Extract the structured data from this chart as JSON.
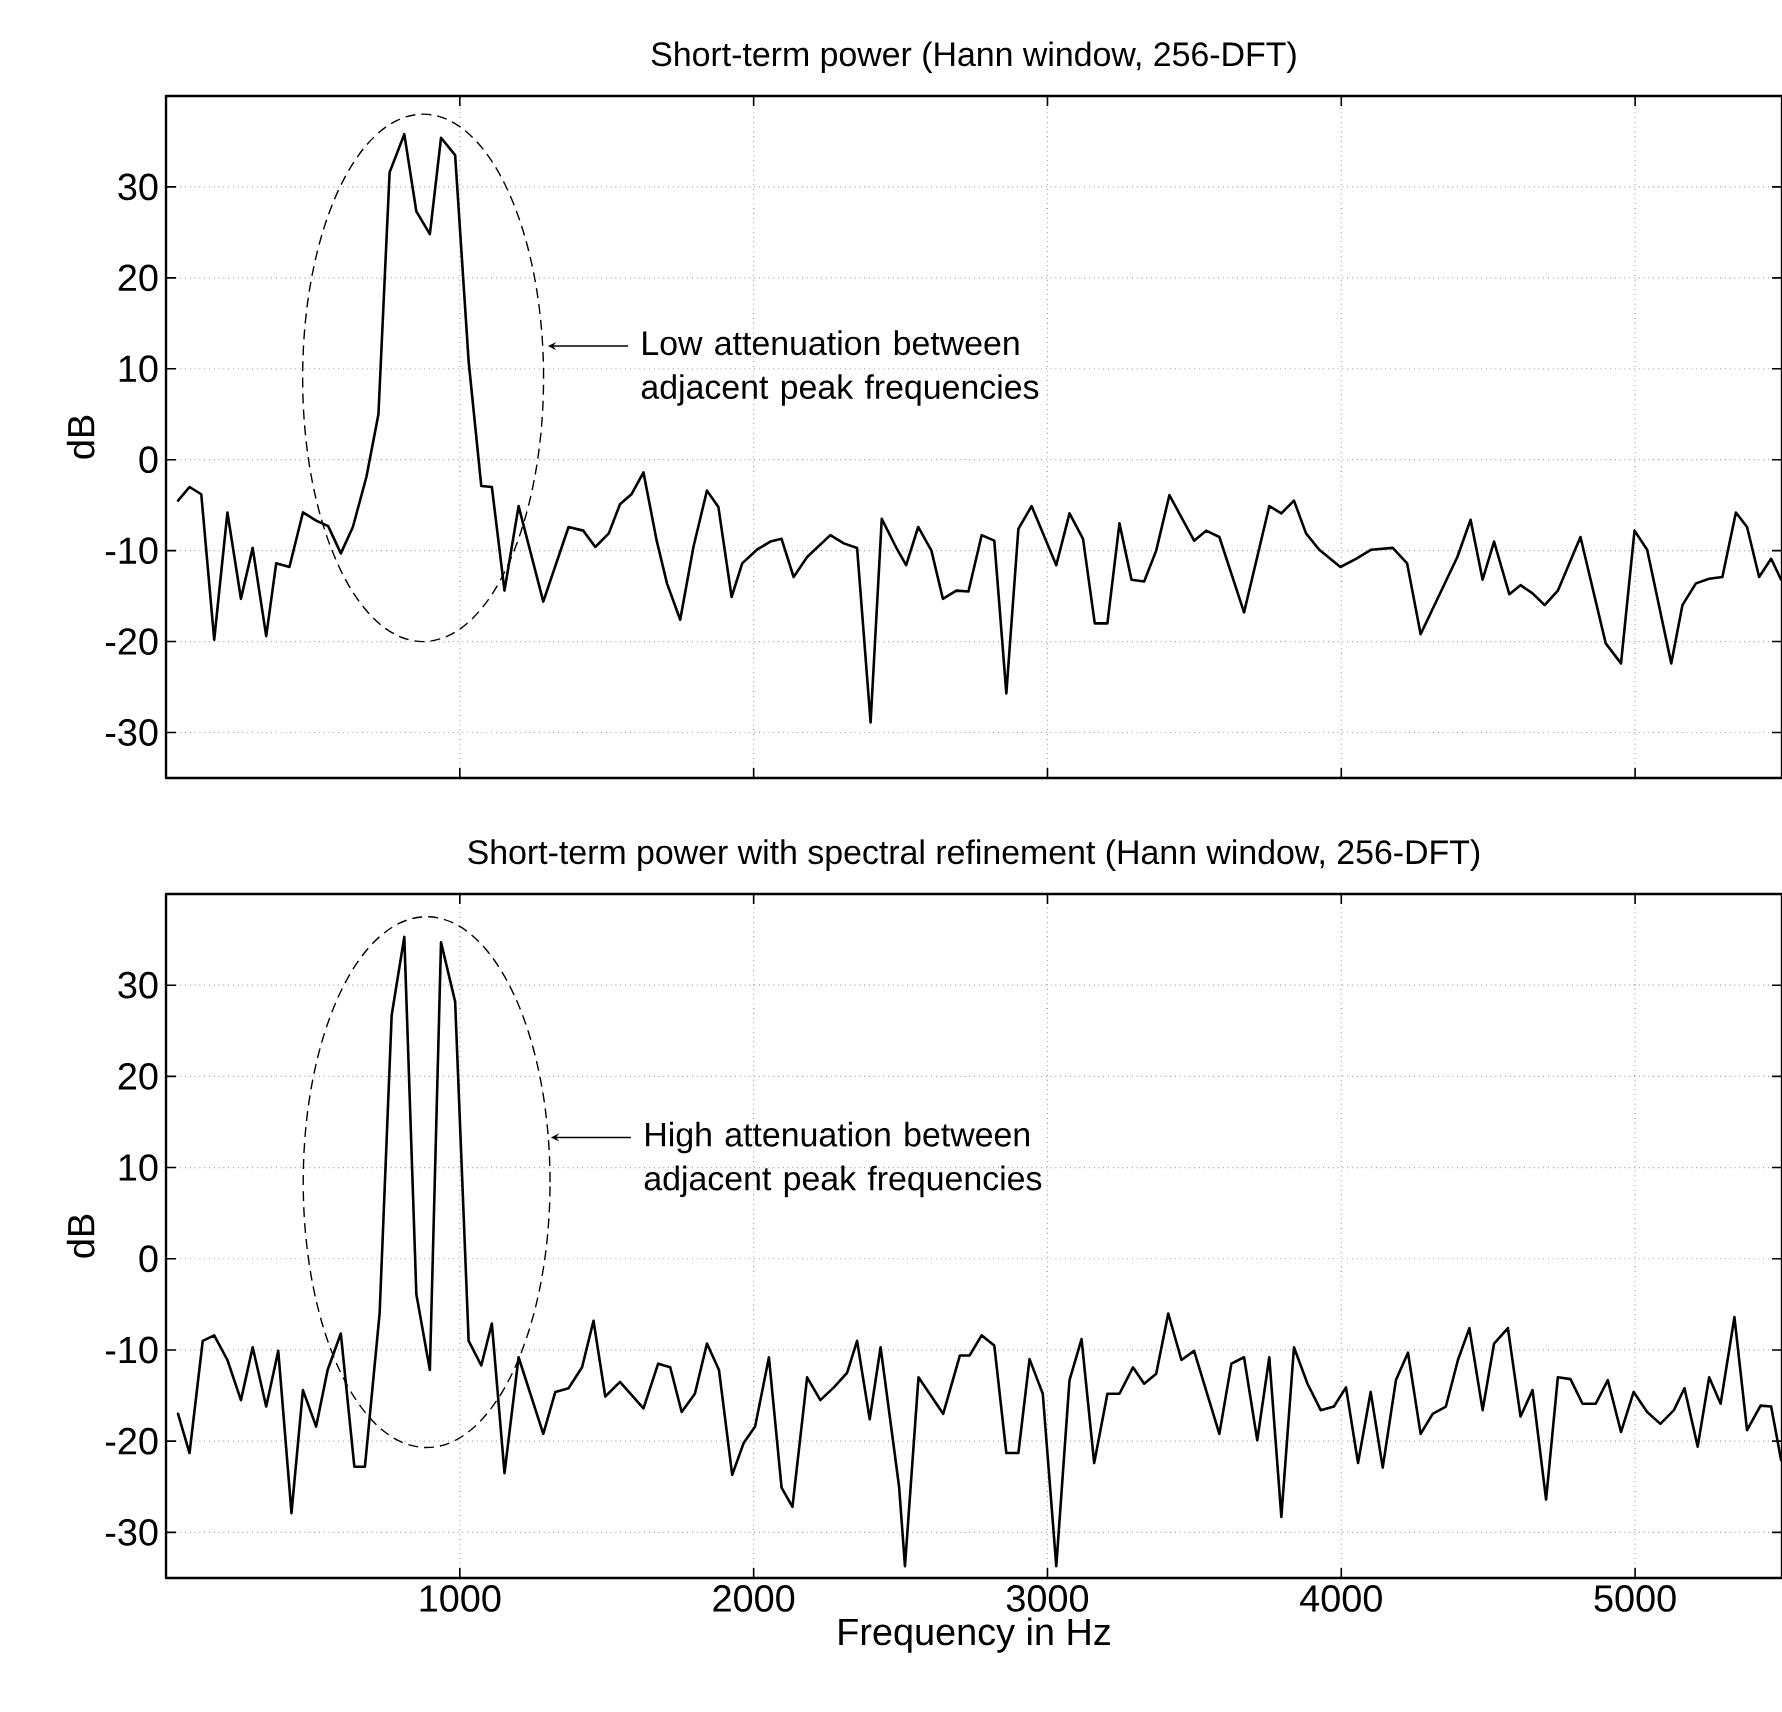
{
  "chart_data": [
    {
      "type": "line",
      "title": "Short-term power (Hann window, 256-DFT)",
      "ylabel": "dB",
      "xlim": [
        0,
        5500
      ],
      "ylim": [
        -35,
        40
      ],
      "xticks": [
        1000,
        2000,
        3000,
        4000,
        5000
      ],
      "yticks": [
        -30,
        -20,
        -10,
        0,
        10,
        20,
        30
      ],
      "grid": true,
      "tick_labels": "y",
      "color": "#000000",
      "annotations": [
        "Low attenuation between adjacent peak frequencies"
      ],
      "x": [
        41,
        80,
        120,
        164,
        209,
        255,
        295,
        341,
        375,
        420,
        466,
        511,
        552,
        595,
        636,
        682,
        723,
        761,
        811,
        852,
        898,
        936,
        984,
        1030,
        1073,
        1109,
        1152,
        1200,
        1284,
        1370,
        1420,
        1461,
        1507,
        1545,
        1584,
        1625,
        1670,
        1705,
        1750,
        1795,
        1841,
        1880,
        1925,
        1961,
        2011,
        2057,
        2095,
        2136,
        2182,
        2261,
        2307,
        2352,
        2398,
        2436,
        2489,
        2519,
        2560,
        2605,
        2644,
        2690,
        2731,
        2776,
        2819,
        2860,
        2901,
        2946,
        3030,
        3075,
        3121,
        3161,
        3204,
        3245,
        3286,
        3329,
        3370,
        3415,
        3499,
        3540,
        3585,
        3669,
        3755,
        3796,
        3839,
        3880,
        3925,
        3997,
        4050,
        4102,
        4175,
        4224,
        4270,
        4395,
        4440,
        4481,
        4520,
        4572,
        4610,
        4651,
        4692,
        4737,
        4814,
        4900,
        4952,
        4998,
        5041,
        5123,
        5161,
        5207,
        5252,
        5297,
        5343,
        5381,
        5422,
        5463,
        5497
      ],
      "values": [
        -4.5,
        -3,
        -3.8,
        -19.8,
        -5.8,
        -15.3,
        -9.7,
        -19.4,
        -11.4,
        -11.8,
        -5.8,
        -6.7,
        -7.3,
        -10.3,
        -7.4,
        -1.9,
        5,
        31.6,
        35.8,
        27.3,
        24.8,
        35.4,
        33.5,
        10.8,
        -2.9,
        -3,
        -14.4,
        -5.1,
        -15.6,
        -7.4,
        -7.8,
        -9.6,
        -8.1,
        -4.9,
        -3.8,
        -1.4,
        -8.9,
        -13.6,
        -17.6,
        -9.6,
        -3.4,
        -5.2,
        -15.1,
        -11.4,
        -9.9,
        -9,
        -8.7,
        -12.9,
        -10.7,
        -8.3,
        -9.2,
        -9.7,
        -28.9,
        -6.5,
        -9.9,
        -11.6,
        -7.4,
        -10,
        -15.3,
        -14.4,
        -14.5,
        -8.3,
        -8.9,
        -25.7,
        -7.6,
        -5.1,
        -11.6,
        -5.9,
        -8.7,
        -18,
        -18,
        -7,
        -13.2,
        -13.4,
        -10,
        -3.9,
        -8.9,
        -7.8,
        -8.5,
        -16.8,
        -5.1,
        -5.9,
        -4.5,
        -8.1,
        -9.9,
        -11.8,
        -10.9,
        -9.9,
        -9.7,
        -11.4,
        -19.2,
        -10.7,
        -6.6,
        -13.2,
        -9,
        -14.8,
        -13.8,
        -14.7,
        -16,
        -14.4,
        -8.5,
        -20.2,
        -22.4,
        -7.8,
        -9.9,
        -22.4,
        -16,
        -13.6,
        -13.1,
        -12.9,
        -5.8,
        -7.4,
        -12.9,
        -10.9,
        -13.2
      ]
    },
    {
      "type": "line",
      "title": "Short-term power with spectral refinement (Hann window, 256-DFT)",
      "xlabel": "Frequency in Hz",
      "ylabel": "dB",
      "xlim": [
        0,
        5500
      ],
      "ylim": [
        -35,
        40
      ],
      "xticks": [
        1000,
        2000,
        3000,
        4000,
        5000
      ],
      "yticks": [
        -30,
        -20,
        -10,
        0,
        10,
        20,
        30
      ],
      "grid": true,
      "color": "#000000",
      "annotations": [
        "High attenuation between adjacent peak frequencies"
      ],
      "x": [
        41,
        80,
        125,
        164,
        209,
        255,
        295,
        341,
        382,
        427,
        466,
        511,
        550,
        595,
        641,
        677,
        727,
        768,
        811,
        852,
        898,
        936,
        984,
        1030,
        1073,
        1109,
        1152,
        1200,
        1284,
        1325,
        1370,
        1416,
        1455,
        1495,
        1545,
        1625,
        1675,
        1716,
        1755,
        1800,
        1841,
        1882,
        1927,
        1966,
        2005,
        2052,
        2095,
        2132,
        2182,
        2227,
        2273,
        2318,
        2352,
        2395,
        2432,
        2495,
        2515,
        2561,
        2645,
        2702,
        2735,
        2776,
        2819,
        2860,
        2901,
        2939,
        2984,
        3030,
        3075,
        3116,
        3159,
        3204,
        3245,
        3291,
        3329,
        3370,
        3411,
        3456,
        3499,
        3585,
        3626,
        3669,
        3714,
        3755,
        3796,
        3839,
        3885,
        3930,
        3975,
        4016,
        4057,
        4100,
        4141,
        4186,
        4227,
        4270,
        4311,
        4356,
        4397,
        4436,
        4481,
        4520,
        4567,
        4610,
        4651,
        4697,
        4737,
        4780,
        4821,
        4866,
        4907,
        4952,
        4995,
        5041,
        5086,
        5132,
        5168,
        5213,
        5252,
        5291,
        5338,
        5381,
        5427,
        5463,
        5497
      ],
      "values": [
        -17,
        -21.3,
        -9,
        -8.4,
        -11.1,
        -15.5,
        -9.7,
        -16.2,
        -10.1,
        -27.9,
        -14.4,
        -18.4,
        -12.2,
        -8.2,
        -22.8,
        -22.8,
        -6,
        26.7,
        35.3,
        -3.9,
        -12.2,
        34.7,
        28.2,
        -9,
        -11.7,
        -7.1,
        -23.5,
        -10.8,
        -19.2,
        -14.6,
        -14.2,
        -11.9,
        -6.8,
        -15.1,
        -13.5,
        -16.4,
        -11.5,
        -11.9,
        -16.8,
        -14.8,
        -9.3,
        -12.2,
        -23.7,
        -20.2,
        -18.4,
        -10.8,
        -25.1,
        -27.2,
        -13,
        -15.5,
        -14.1,
        -12.5,
        -9,
        -17.6,
        -9.7,
        -25,
        -33.7,
        -13,
        -17,
        -10.6,
        -10.6,
        -8.4,
        -9.5,
        -21.3,
        -21.3,
        -11,
        -14.8,
        -33.7,
        -13.3,
        -8.8,
        -22.4,
        -14.8,
        -14.8,
        -11.9,
        -13.7,
        -12.6,
        -6,
        -11.1,
        -10.1,
        -19.2,
        -11.5,
        -10.8,
        -19.9,
        -10.8,
        -28.3,
        -9.7,
        -13.7,
        -16.6,
        -16.2,
        -14.1,
        -22.4,
        -14.6,
        -22.9,
        -13.3,
        -10.3,
        -19.2,
        -17,
        -16.2,
        -11.1,
        -7.6,
        -16.6,
        -9.3,
        -7.6,
        -17.3,
        -14.4,
        -26.4,
        -13,
        -13.2,
        -15.9,
        -15.9,
        -13.3,
        -19,
        -14.6,
        -16.8,
        -18.1,
        -16.6,
        -14.2,
        -20.6,
        -13,
        -15.9,
        -6.4,
        -18.8,
        -16.1,
        -16.2,
        -22.1
      ]
    }
  ]
}
